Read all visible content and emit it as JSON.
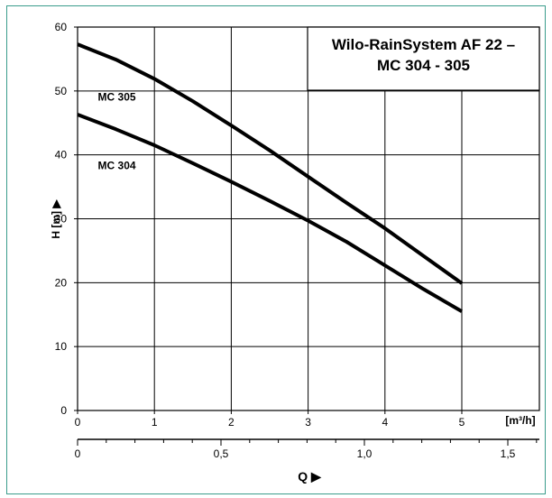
{
  "chart_data": {
    "type": "line",
    "title": "Wilo-RainSystem AF 22 –\nMC 304 - 305",
    "xlabel": "Q ▶",
    "ylabel": "H [m] ▶",
    "x_unit": "[m³/h]",
    "x_ticks": [
      "0",
      "1",
      "2",
      "3",
      "4",
      "5"
    ],
    "x2_ticks": [
      "0",
      "0,5",
      "1,0",
      "1,5"
    ],
    "y_ticks": [
      "0",
      "10",
      "20",
      "30",
      "40",
      "50",
      "60"
    ],
    "xlim": [
      0,
      5.8
    ],
    "ylim": [
      0,
      60
    ],
    "x2lim": [
      0,
      1.61
    ],
    "grid": true,
    "series": [
      {
        "name": "MC 305",
        "x": [
          0,
          0.5,
          1,
          1.5,
          2,
          2.5,
          3,
          3.5,
          4,
          4.5,
          5
        ],
        "values": [
          57.3,
          54.9,
          51.9,
          48.4,
          44.6,
          40.7,
          36.6,
          32.5,
          28.5,
          24.2,
          19.9
        ]
      },
      {
        "name": "MC 304",
        "x": [
          0,
          0.5,
          1,
          1.5,
          2,
          2.5,
          3,
          3.5,
          4,
          4.5,
          5
        ],
        "values": [
          46.3,
          44.0,
          41.5,
          38.7,
          35.8,
          32.8,
          29.7,
          26.4,
          22.7,
          19.0,
          15.5
        ]
      }
    ]
  }
}
